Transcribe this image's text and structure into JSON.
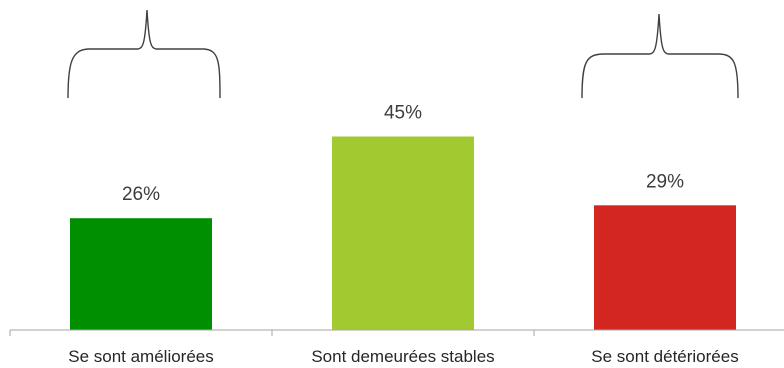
{
  "chart_data": {
    "type": "bar",
    "categories": [
      "Se sont améliorées",
      "Sont demeurées stables",
      "Se sont détériorées"
    ],
    "values": [
      26,
      45,
      29
    ],
    "value_labels": [
      "26%",
      "45%",
      "29%"
    ],
    "colors": [
      "#008f00",
      "#a2c930",
      "#d42620"
    ],
    "title": "",
    "xlabel": "",
    "ylabel": "",
    "ylim": [
      0,
      100
    ],
    "grid": false,
    "legend": "none",
    "braces_over": [
      0,
      2
    ]
  }
}
